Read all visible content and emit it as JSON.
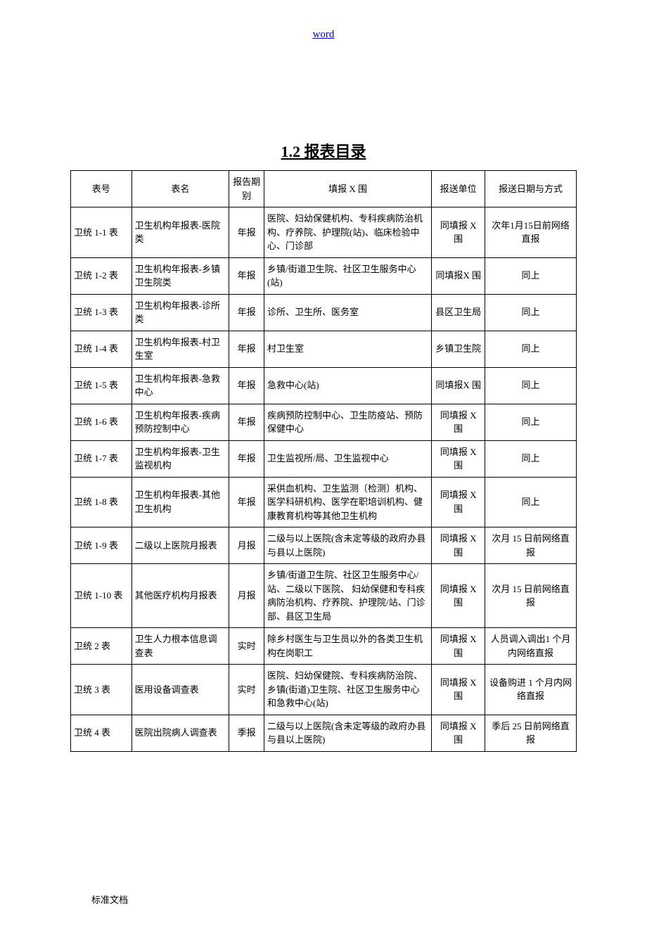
{
  "header": {
    "link_text": "word"
  },
  "title": "1.2 报表目录",
  "table": {
    "headers": {
      "col_no": "表号",
      "col_name": "表名",
      "col_period": "报告期别",
      "col_scope": "填报 X 围",
      "col_unit": "报送单位",
      "col_date": "报送日期与方式"
    },
    "rows": [
      {
        "no": "卫统 1-1 表",
        "name": "卫生机构年报表-医院类",
        "period": "年报",
        "scope": "医院、妇幼保健机构、专科疾病防治机构、疗养院、护理院(站)、临床检验中心、门诊部",
        "unit": "同填报 X 围",
        "date": "次年1月15日前网络直报"
      },
      {
        "no": "卫统 1-2 表",
        "name": "卫生机构年报表-乡镇卫生院类",
        "period": "年报",
        "scope": "乡镇/街道卫生院、社区卫生服务中心(站)",
        "unit": "同填报X 围",
        "date": "同上"
      },
      {
        "no": "卫统 1-3 表",
        "name": "卫生机构年报表-诊所类",
        "period": "年报",
        "scope": "诊所、卫生所、医务室",
        "unit": "县区卫生局",
        "date": "同上"
      },
      {
        "no": "卫统 1-4 表",
        "name": "卫生机构年报表-村卫生室",
        "period": "年报",
        "scope": "村卫生室",
        "unit": "乡镇卫生院",
        "date": "同上"
      },
      {
        "no": "卫统 1-5 表",
        "name": "卫生机构年报表-急救中心",
        "period": "年报",
        "scope": "急救中心(站)",
        "unit": "同填报X 围",
        "date": "同上"
      },
      {
        "no": "卫统 1-6 表",
        "name": "卫生机构年报表-疾病预防控制中心",
        "period": "年报",
        "scope": "疾病预防控制中心、卫生防疫站、预防保健中心",
        "unit": "同填报 X 围",
        "date": "同上"
      },
      {
        "no": "卫统 1-7 表",
        "name": "卫生机构年报表-卫生监视机构",
        "period": "年报",
        "scope": "卫生监视所/局、卫生监视中心",
        "unit": "同填报 X 围",
        "date": "同上"
      },
      {
        "no": "卫统 1-8 表",
        "name": "卫生机构年报表-其他卫生机构",
        "period": "年报",
        "scope": "采供血机构、卫生监测〔检测〕机构、医学科研机构、医学在职培训机构、健康教育机构等其他卫生机构",
        "unit": "同填报 X 围",
        "date": "同上"
      },
      {
        "no": "卫统 1-9 表",
        "name": "二级以上医院月报表",
        "period": "月报",
        "scope": "二级与以上医院(含未定等级的政府办县与县以上医院)",
        "unit": "同填报 X 围",
        "date": "次月 15 日前网络直报"
      },
      {
        "no": "卫统 1-10 表",
        "name": "其他医疗机构月报表",
        "period": "月报",
        "scope": "乡镇/街道卫生院、社区卫生服务中心/站、二级以下医院、 妇幼保健和专科疾病防治机构、疗养院、护理院/站、门诊部、县区卫生局",
        "unit": "同填报 X 围",
        "date": "次月 15 日前网络直报"
      },
      {
        "no": "卫统 2 表",
        "name": "卫生人力根本信息调查表",
        "period": "实时",
        "scope": "除乡村医生与卫生员以外的各类卫生机构在岗职工",
        "unit": "同填报 X 围",
        "date": "人员调入调出1 个月内网络直报"
      },
      {
        "no": "卫统 3 表",
        "name": "医用设备调查表",
        "period": "实时",
        "scope": "医院、妇幼保健院、专科疾病防治院、乡镇(街道)卫生院、社区卫生服务中心和急救中心(站)",
        "unit": "同填报 X 围",
        "date": "设备购进 1 个月内网络直报"
      },
      {
        "no": "卫统 4 表",
        "name": "医院出院病人调查表",
        "period": "季报",
        "scope": "二级与以上医院(含未定等级的政府办县与县以上医院)",
        "unit": "同填报 X 围",
        "date": "季后 25 日前网络直报"
      }
    ]
  },
  "footer": {
    "text": "标准文档"
  }
}
